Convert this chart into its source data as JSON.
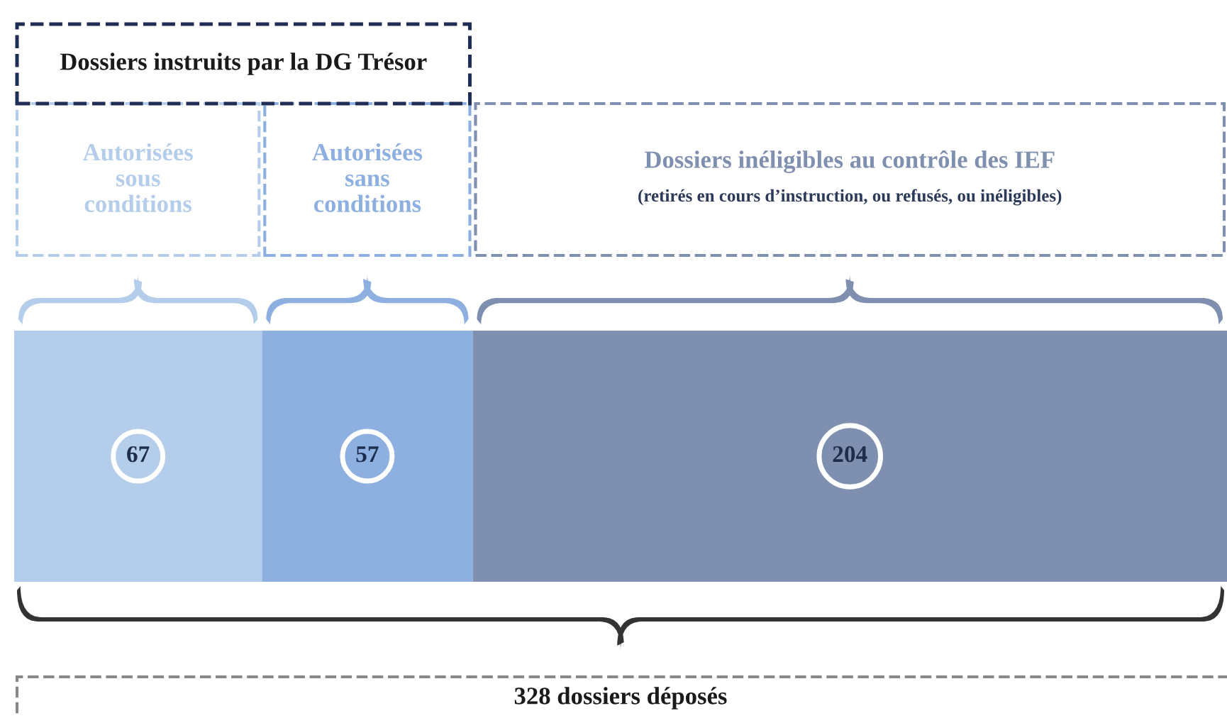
{
  "chart_data": {
    "type": "bar",
    "orientation": "horizontal",
    "stacked": true,
    "categories": [
      null
    ],
    "series": [
      {
        "name": "Autorisées sous conditions",
        "color": "#b3cdea",
        "values": [
          67
        ]
      },
      {
        "name": "Autorisées sans conditions",
        "color": "#8db0e1",
        "values": [
          57
        ]
      },
      {
        "name": "Dossiers inéligibles au contrôle des IEF",
        "color": "#7f8fb0",
        "values": [
          204
        ]
      }
    ],
    "data_labels": true,
    "annotations": [
      "Dossiers instruits par la DG Trésor",
      "(retirés en cours d’instruction, ou refusés, ou inéligibles)",
      "328 dossiers déposés"
    ]
  }
}
